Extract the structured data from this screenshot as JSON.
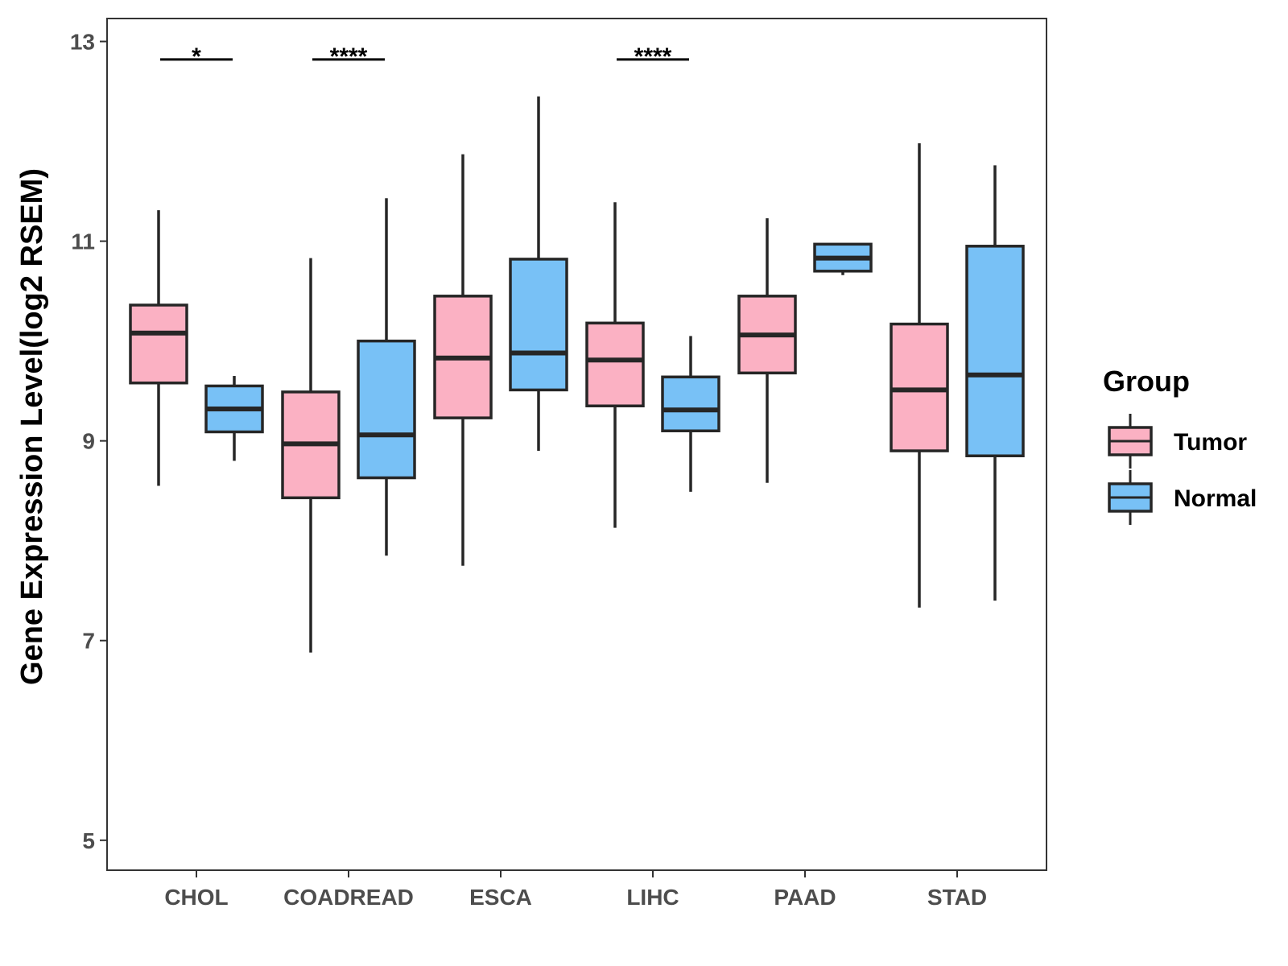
{
  "chart_data": {
    "type": "boxplot",
    "title": "",
    "xlabel": "",
    "ylabel": "Gene Expression Level(log2 RSEM)",
    "ylim": [
      4.7,
      13.23
    ],
    "yticks": [
      5,
      7,
      9,
      11,
      13
    ],
    "grid": false,
    "categories": [
      "CHOL",
      "COADREAD",
      "ESCA",
      "LIHC",
      "PAAD",
      "STAD"
    ],
    "legend": {
      "title": "Group",
      "position": "right",
      "entries": [
        {
          "label": "Tumor",
          "color": "#FBB1C3"
        },
        {
          "label": "Normal",
          "color": "#78C1F6"
        }
      ]
    },
    "series": [
      {
        "name": "Tumor",
        "color": "#FBB1C3",
        "boxes": [
          {
            "category": "CHOL",
            "whisker_low": 8.55,
            "q1": 9.58,
            "median": 10.08,
            "q3": 10.36,
            "whisker_high": 11.31
          },
          {
            "category": "COADREAD",
            "whisker_low": 6.88,
            "q1": 8.43,
            "median": 8.97,
            "q3": 9.49,
            "whisker_high": 10.83
          },
          {
            "category": "ESCA",
            "whisker_low": 7.75,
            "q1": 9.23,
            "median": 9.83,
            "q3": 10.45,
            "whisker_high": 11.87
          },
          {
            "category": "LIHC",
            "whisker_low": 8.13,
            "q1": 9.35,
            "median": 9.81,
            "q3": 10.18,
            "whisker_high": 11.39
          },
          {
            "category": "PAAD",
            "whisker_low": 8.58,
            "q1": 9.68,
            "median": 10.06,
            "q3": 10.45,
            "whisker_high": 11.23
          },
          {
            "category": "STAD",
            "whisker_low": 7.33,
            "q1": 8.9,
            "median": 9.51,
            "q3": 10.17,
            "whisker_high": 11.98
          }
        ]
      },
      {
        "name": "Normal",
        "color": "#78C1F6",
        "boxes": [
          {
            "category": "CHOL",
            "whisker_low": 8.8,
            "q1": 9.09,
            "median": 9.32,
            "q3": 9.55,
            "whisker_high": 9.65
          },
          {
            "category": "COADREAD",
            "whisker_low": 7.85,
            "q1": 8.63,
            "median": 9.06,
            "q3": 10.0,
            "whisker_high": 11.43
          },
          {
            "category": "ESCA",
            "whisker_low": 8.9,
            "q1": 9.51,
            "median": 9.88,
            "q3": 10.82,
            "whisker_high": 12.45
          },
          {
            "category": "LIHC",
            "whisker_low": 8.49,
            "q1": 9.1,
            "median": 9.31,
            "q3": 9.64,
            "whisker_high": 10.05
          },
          {
            "category": "PAAD",
            "whisker_low": 10.66,
            "q1": 10.7,
            "median": 10.83,
            "q3": 10.97,
            "whisker_high": 10.97
          },
          {
            "category": "STAD",
            "whisker_low": 7.4,
            "q1": 8.85,
            "median": 9.66,
            "q3": 10.95,
            "whisker_high": 11.76
          }
        ]
      }
    ],
    "significance": [
      {
        "category": "CHOL",
        "label": "*",
        "y": 12.82
      },
      {
        "category": "COADREAD",
        "label": "****",
        "y": 12.82
      },
      {
        "category": "LIHC",
        "label": "****",
        "y": 12.82
      }
    ]
  }
}
